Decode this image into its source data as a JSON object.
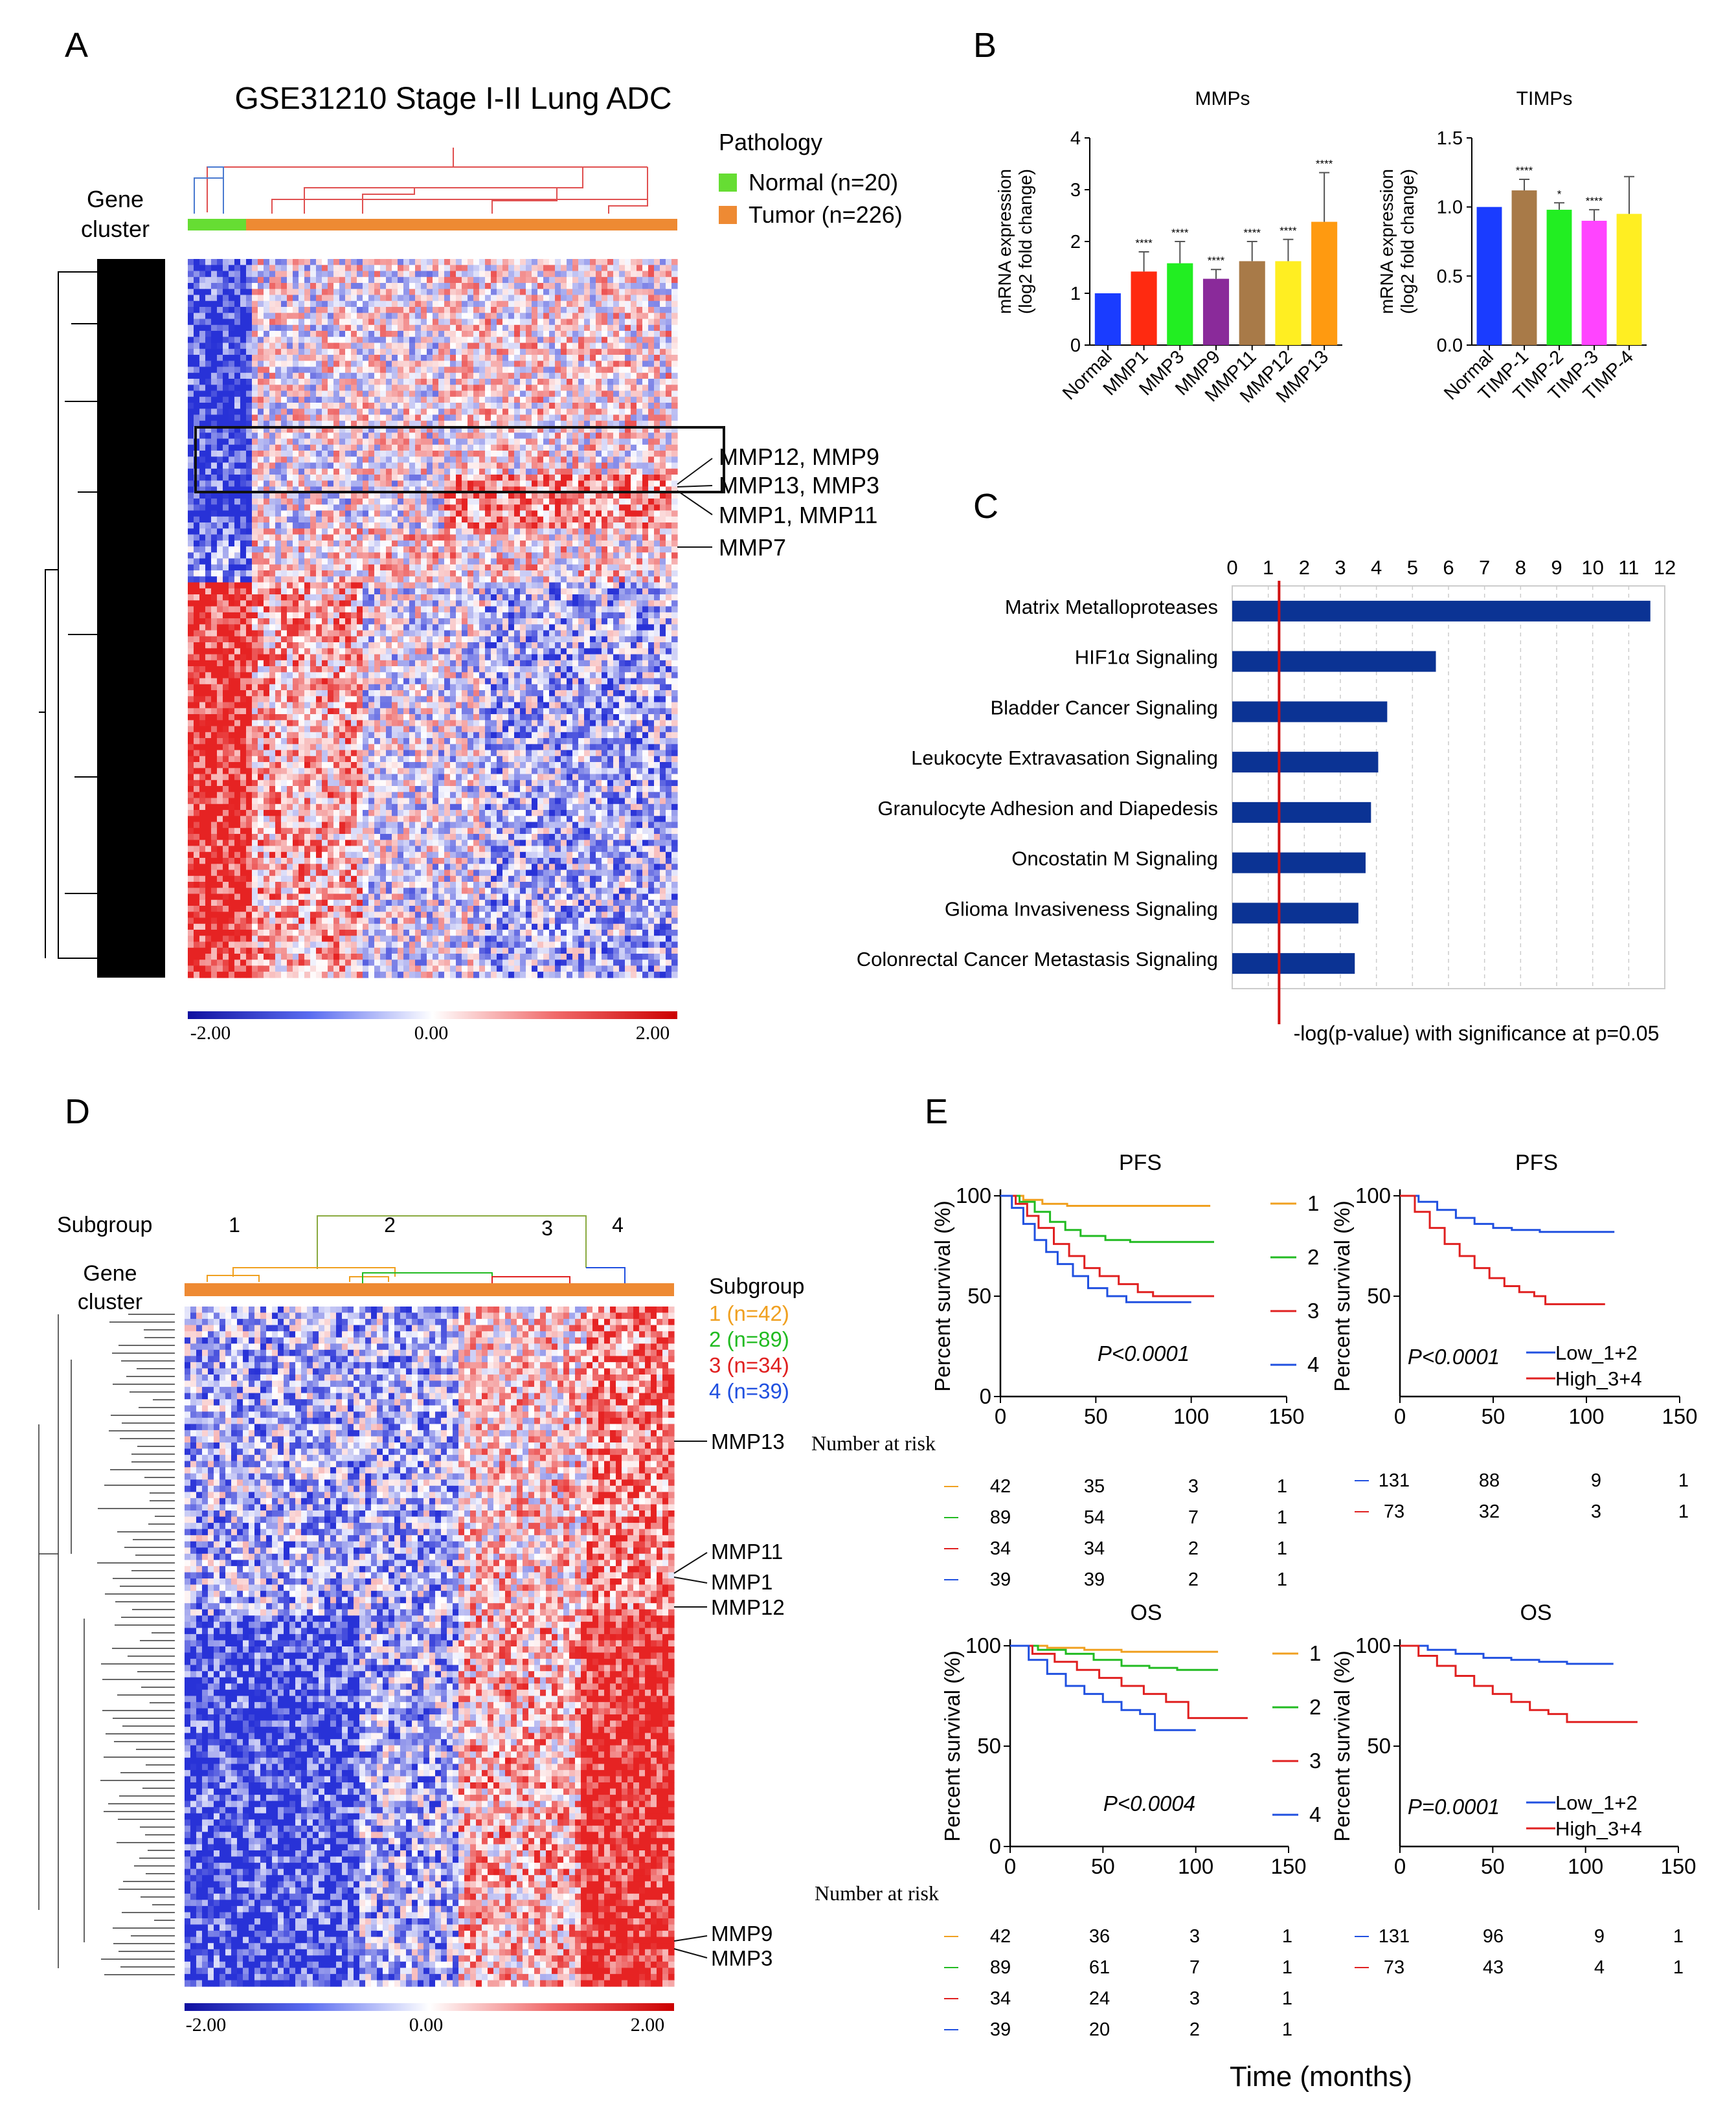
{
  "panel_labels": {
    "a": "A",
    "b": "B",
    "c": "C",
    "d": "D",
    "e": "E"
  },
  "panel_a": {
    "title": "GSE31210 Stage I-II Lung ADC",
    "gene_cluster_label": [
      "Gene",
      "cluster"
    ],
    "legend_title": "Pathology",
    "legend": [
      {
        "label": "Normal (n=20)",
        "color": "#66dd33"
      },
      {
        "label": "Tumor (n=226)",
        "color": "#ee8a33"
      }
    ],
    "annotations": [
      "MMP12, MMP9",
      "MMP13, MMP3",
      "MMP1, MMP11",
      "MMP7"
    ],
    "colorbar_ticks": [
      "-2.00",
      "0.00",
      "2.00"
    ]
  },
  "panel_d": {
    "subgroup_label": "Subgroup",
    "subgroup_numbers": [
      "1",
      "2",
      "3",
      "4"
    ],
    "gene_cluster_label": [
      "Gene",
      "cluster"
    ],
    "legend_title": "Subgroup",
    "legend": [
      {
        "label": "1 (n=42)",
        "color": "#f0a020"
      },
      {
        "label": "2 (n=89)",
        "color": "#22bb22"
      },
      {
        "label": "3 (n=34)",
        "color": "#e02020"
      },
      {
        "label": "4 (n=39)",
        "color": "#2050e0"
      }
    ],
    "annotations": [
      "MMP13",
      "MMP11",
      "MMP1",
      "MMP12",
      "MMP9",
      "MMP3"
    ],
    "colorbar_ticks": [
      "-2.00",
      "0.00",
      "2.00"
    ]
  },
  "chart_data": [
    {
      "id": "B-MMPs",
      "type": "bar",
      "title": "MMPs",
      "ylabel": [
        "mRNA expression",
        "(log2 fold change)"
      ],
      "ylim": [
        0,
        4
      ],
      "yticks": [
        "0",
        "1",
        "2",
        "3",
        "4"
      ],
      "categories": [
        "Normal",
        "MMP1",
        "MMP3",
        "MMP9",
        "MMP11",
        "MMP12",
        "MMP13"
      ],
      "values": [
        1.0,
        1.42,
        1.58,
        1.28,
        1.62,
        1.62,
        2.38
      ],
      "errors": [
        0,
        0.38,
        0.42,
        0.18,
        0.38,
        0.42,
        0.95
      ],
      "significance": [
        "",
        "****",
        "****",
        "****",
        "****",
        "****",
        "****"
      ],
      "colors": [
        "#1a3cff",
        "#ff2a10",
        "#22ee22",
        "#8a2a9a",
        "#a87a48",
        "#ffee22",
        "#ff9a10"
      ]
    },
    {
      "id": "B-TIMPs",
      "type": "bar",
      "title": "TIMPs",
      "ylabel": [
        "mRNA expression",
        "(log2 fold change)"
      ],
      "ylim": [
        0,
        1.5
      ],
      "yticks": [
        "0.0",
        "0.5",
        "1.0",
        "1.5"
      ],
      "categories": [
        "Normal",
        "TIMP-1",
        "TIMP-2",
        "TIMP-3",
        "TIMP-4"
      ],
      "values": [
        1.0,
        1.12,
        0.98,
        0.9,
        0.95
      ],
      "errors": [
        0,
        0.08,
        0.05,
        0.08,
        0.27
      ],
      "significance": [
        "",
        "****",
        "*",
        "****",
        ""
      ],
      "colors": [
        "#1a3cff",
        "#a87a48",
        "#22ee22",
        "#ff44ff",
        "#ffee22"
      ]
    },
    {
      "id": "C",
      "type": "bar",
      "orientation": "horizontal",
      "categories": [
        "Matrix Metalloproteases",
        "HIF1α Signaling",
        "Bladder Cancer Signaling",
        "Leukocyte Extravasation Signaling",
        "Granulocyte Adhesion and Diapedesis",
        "Oncostatin M Signaling",
        "Glioma Invasiveness Signaling",
        "Colonrectal Cancer Metastasis Signaling"
      ],
      "values": [
        11.6,
        5.65,
        4.3,
        4.05,
        3.85,
        3.7,
        3.5,
        3.4
      ],
      "xlim": [
        0,
        12
      ],
      "xticks": [
        "0",
        "1",
        "2",
        "3",
        "4",
        "5",
        "6",
        "7",
        "8",
        "9",
        "10",
        "11",
        "12"
      ],
      "threshold": 1.3,
      "xlabel": "-log(p-value) with significance at p=0.05",
      "bar_color": "#0b3394"
    },
    {
      "id": "E-PFS-subgroup",
      "type": "line",
      "title": "PFS",
      "ylabel": "Percent survival (%)",
      "xlabel": "Time (months)",
      "xlim": [
        0,
        150
      ],
      "ylim": [
        0,
        100
      ],
      "xticks": [
        "0",
        "50",
        "100",
        "150"
      ],
      "yticks": [
        "0",
        "50",
        "100"
      ],
      "pvalue": "P<0.0001",
      "series": [
        {
          "name": "1",
          "color": "#f0a020",
          "x": [
            0,
            12,
            22,
            35,
            110
          ],
          "y": [
            100,
            98,
            96,
            95,
            95
          ]
        },
        {
          "name": "2",
          "color": "#22bb22",
          "x": [
            0,
            10,
            18,
            26,
            34,
            42,
            55,
            68,
            85,
            112
          ],
          "y": [
            100,
            97,
            92,
            87,
            83,
            80,
            78,
            77,
            77,
            77
          ]
        },
        {
          "name": "3",
          "color": "#e02020",
          "x": [
            0,
            8,
            14,
            20,
            28,
            36,
            44,
            52,
            62,
            72,
            80,
            112
          ],
          "y": [
            100,
            96,
            90,
            84,
            76,
            70,
            64,
            60,
            56,
            52,
            50,
            50
          ]
        },
        {
          "name": "4",
          "color": "#2050e0",
          "x": [
            0,
            6,
            12,
            18,
            24,
            30,
            38,
            46,
            56,
            66,
            100
          ],
          "y": [
            100,
            94,
            86,
            78,
            72,
            66,
            60,
            54,
            50,
            47,
            47
          ]
        }
      ],
      "risk_label": "Number at risk",
      "risk_times": [
        "0",
        "50",
        "100",
        "150"
      ],
      "risk_table": [
        [
          "42",
          "35",
          "3",
          "1"
        ],
        [
          "89",
          "54",
          "7",
          "1"
        ],
        [
          "34",
          "34",
          "2",
          "1"
        ],
        [
          "39",
          "39",
          "2",
          "1"
        ]
      ]
    },
    {
      "id": "E-PFS-group",
      "type": "line",
      "title": "PFS",
      "ylabel": "Percent survival (%)",
      "xlim": [
        0,
        150
      ],
      "ylim": [
        0,
        100
      ],
      "xticks": [
        "0",
        "50",
        "100",
        "150"
      ],
      "yticks": [
        "50",
        "100"
      ],
      "pvalue": "P<0.0001",
      "series": [
        {
          "name": "Low_1+2",
          "color": "#2050e0",
          "x": [
            0,
            10,
            20,
            30,
            40,
            50,
            60,
            75,
            90,
            115
          ],
          "y": [
            100,
            97,
            93,
            89,
            86,
            84,
            83,
            82,
            82,
            82
          ]
        },
        {
          "name": "High_3+4",
          "color": "#e02020",
          "x": [
            0,
            8,
            16,
            24,
            32,
            40,
            48,
            56,
            64,
            72,
            78,
            110
          ],
          "y": [
            100,
            92,
            84,
            76,
            70,
            64,
            59,
            55,
            52,
            50,
            46,
            46
          ]
        }
      ],
      "risk_table": [
        [
          "131",
          "88",
          "9",
          "1"
        ],
        [
          "73",
          "32",
          "3",
          "1"
        ]
      ]
    },
    {
      "id": "E-OS-subgroup",
      "type": "line",
      "title": "OS",
      "ylabel": "Percent survival (%)",
      "xlim": [
        0,
        150
      ],
      "ylim": [
        0,
        100
      ],
      "xticks": [
        "0",
        "50",
        "100",
        "150"
      ],
      "yticks": [
        "0",
        "50",
        "100"
      ],
      "pvalue": "P<0.0004",
      "series": [
        {
          "name": "1",
          "color": "#f0a020",
          "x": [
            0,
            20,
            40,
            60,
            112
          ],
          "y": [
            100,
            99,
            98,
            97,
            97
          ]
        },
        {
          "name": "2",
          "color": "#22bb22",
          "x": [
            0,
            15,
            30,
            45,
            60,
            75,
            90,
            112
          ],
          "y": [
            100,
            98,
            96,
            93,
            90,
            89,
            88,
            88
          ]
        },
        {
          "name": "3",
          "color": "#e02020",
          "x": [
            0,
            12,
            24,
            36,
            48,
            60,
            72,
            84,
            96,
            128
          ],
          "y": [
            100,
            96,
            92,
            88,
            84,
            80,
            76,
            72,
            64,
            64
          ]
        },
        {
          "name": "4",
          "color": "#2050e0",
          "x": [
            0,
            10,
            20,
            30,
            40,
            50,
            60,
            70,
            78,
            100
          ],
          "y": [
            100,
            93,
            86,
            80,
            76,
            72,
            68,
            66,
            58,
            58
          ]
        }
      ],
      "risk_label": "Number at risk",
      "risk_table": [
        [
          "42",
          "36",
          "3",
          "1"
        ],
        [
          "89",
          "61",
          "7",
          "1"
        ],
        [
          "34",
          "24",
          "3",
          "1"
        ],
        [
          "39",
          "20",
          "2",
          "1"
        ]
      ]
    },
    {
      "id": "E-OS-group",
      "type": "line",
      "title": "OS",
      "ylabel": "Percent survival (%)",
      "xlim": [
        0,
        150
      ],
      "ylim": [
        0,
        100
      ],
      "xticks": [
        "0",
        "50",
        "100",
        "150"
      ],
      "yticks": [
        "50",
        "100"
      ],
      "pvalue": "P=0.0001",
      "series": [
        {
          "name": "Low_1+2",
          "color": "#2050e0",
          "x": [
            0,
            15,
            30,
            45,
            60,
            75,
            90,
            115
          ],
          "y": [
            100,
            98,
            96,
            94,
            93,
            92,
            91,
            91
          ]
        },
        {
          "name": "High_3+4",
          "color": "#e02020",
          "x": [
            0,
            10,
            20,
            30,
            40,
            50,
            60,
            70,
            80,
            90,
            128
          ],
          "y": [
            100,
            95,
            90,
            85,
            80,
            76,
            72,
            68,
            66,
            62,
            62
          ]
        }
      ],
      "risk_table": [
        [
          "131",
          "96",
          "9",
          "1"
        ],
        [
          "73",
          "43",
          "4",
          "1"
        ]
      ]
    }
  ]
}
